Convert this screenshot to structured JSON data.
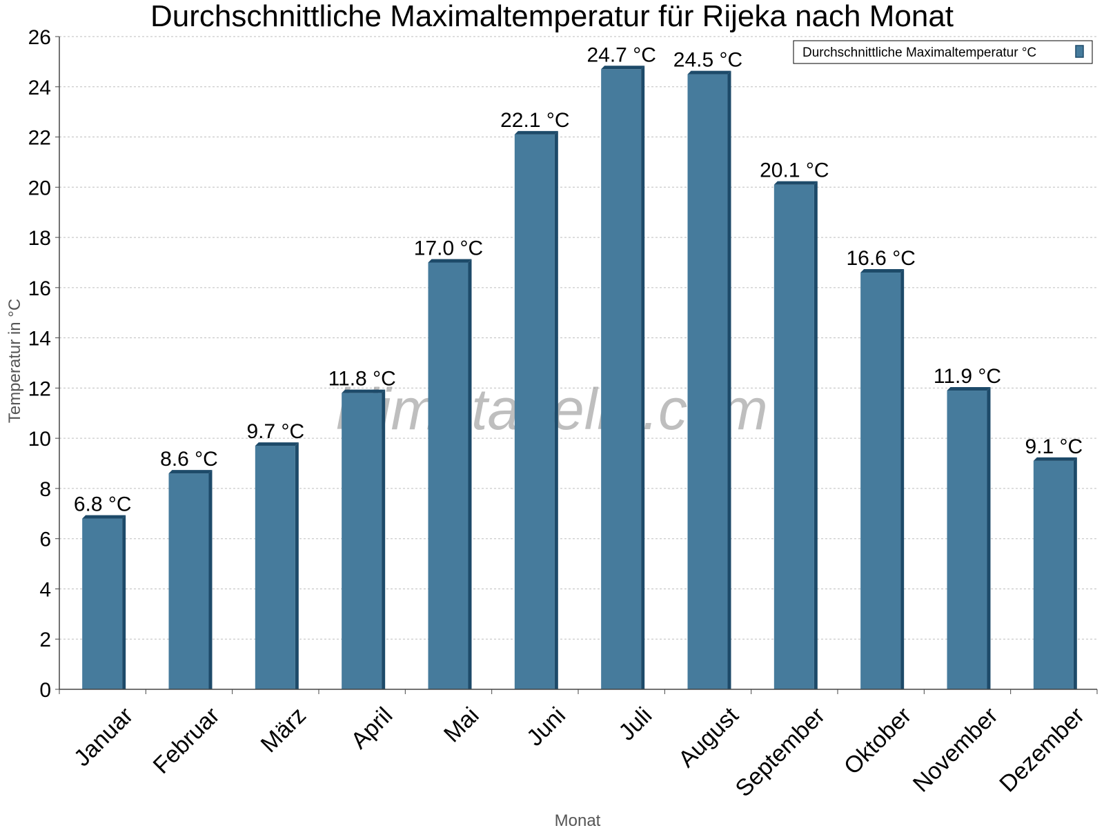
{
  "chart_data": {
    "type": "bar",
    "title": "Durchschnittliche Maximaltemperatur für Rijeka nach Monat",
    "xlabel": "Monat",
    "ylabel": "Temperatur in °C",
    "categories": [
      "Januar",
      "Februar",
      "März",
      "April",
      "Mai",
      "Juni",
      "Juli",
      "August",
      "September",
      "Oktober",
      "November",
      "Dezember"
    ],
    "series": [
      {
        "name": "Durchschnittliche Maximaltemperatur °C",
        "values": [
          6.8,
          8.6,
          9.7,
          11.8,
          17.0,
          22.1,
          24.7,
          24.5,
          20.1,
          16.6,
          11.9,
          9.1
        ],
        "labels": [
          "6.8 °C",
          "8.6 °C",
          "9.7 °C",
          "11.8 °C",
          "17.0 °C",
          "22.1 °C",
          "24.7 °C",
          "24.5 °C",
          "20.1 °C",
          "16.6 °C",
          "11.9 °C",
          "9.1 °C"
        ]
      }
    ],
    "ylim": [
      0,
      26
    ],
    "yticks": [
      "0",
      "2",
      "4",
      "6",
      "8",
      "10",
      "12",
      "14",
      "16",
      "18",
      "20",
      "22",
      "24",
      "26"
    ],
    "grid": true,
    "legend_position": "top-right",
    "colors": {
      "bar_face": "#467b9c",
      "bar_side": "#1d4a69",
      "bar_top": "#1d4a69"
    },
    "watermark": "klimatabelle.com"
  }
}
